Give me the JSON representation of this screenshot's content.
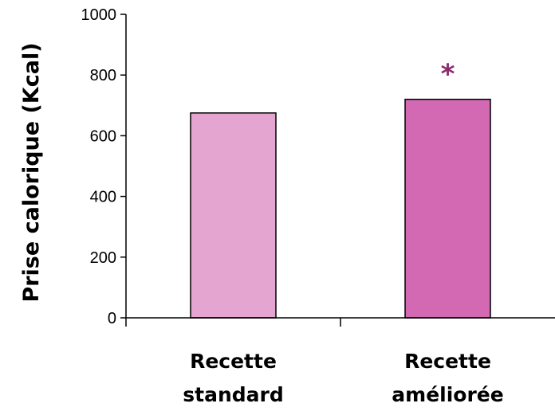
{
  "chart_data": {
    "type": "bar",
    "categories": [
      [
        "Recette",
        "standard"
      ],
      [
        "Recette",
        "améliorée"
      ]
    ],
    "values": [
      675,
      720
    ],
    "bar_colors": [
      "#e4a5d1",
      "#d269b2"
    ],
    "bar_edge_color": "#000000",
    "ylabel": "Prise calorique (Kcal)",
    "xlabel": "",
    "ylim": [
      0,
      1000
    ],
    "yticks": [
      0,
      200,
      400,
      600,
      800,
      1000
    ],
    "grid": false,
    "legend": "none",
    "annotations": [
      {
        "text": "*",
        "category_index": 1,
        "color": "#8b2a6e"
      }
    ]
  }
}
